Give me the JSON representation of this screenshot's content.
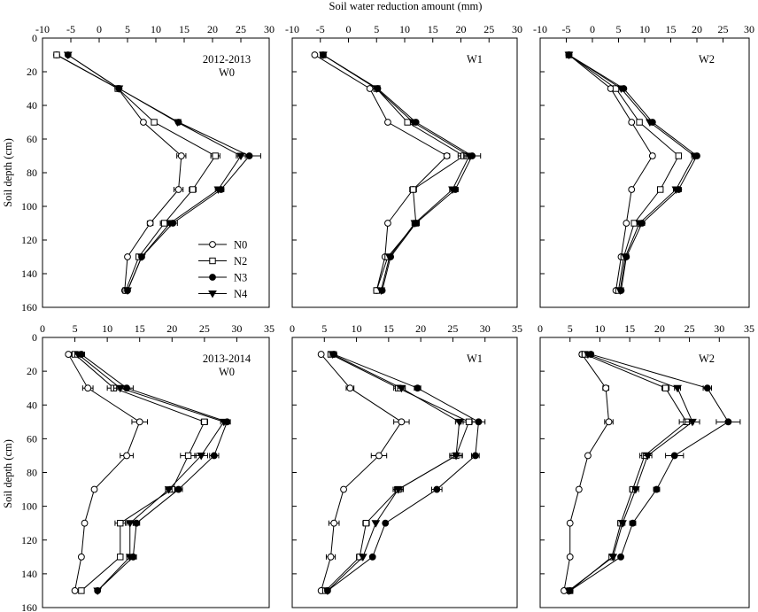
{
  "figure": {
    "top_axis_title": "Soil water reduction amount (mm)",
    "left_axis_title": "Soil depth (cm)"
  },
  "legend": [
    {
      "name": "N0",
      "marker": "open-circle"
    },
    {
      "name": "N2",
      "marker": "open-square"
    },
    {
      "name": "N3",
      "marker": "filled-circle"
    },
    {
      "name": "N4",
      "marker": "filled-triangle-down"
    }
  ],
  "chart_data": [
    {
      "type": "line",
      "row": 0,
      "col": 0,
      "label_lines": [
        "2012-2013",
        "W0"
      ],
      "xlim": [
        -10,
        30
      ],
      "xticks": [
        -10,
        -5,
        0,
        5,
        10,
        15,
        20,
        25,
        30
      ],
      "ylim": [
        0,
        160
      ],
      "yticks": [
        0,
        20,
        40,
        60,
        80,
        100,
        120,
        140,
        160
      ],
      "depths": [
        10,
        30,
        50,
        70,
        90,
        110,
        130,
        150
      ],
      "series": [
        {
          "name": "N0",
          "x": [
            -7.5,
            3.3,
            7.8,
            14.5,
            14,
            9,
            5,
            4.5
          ],
          "err": [
            0,
            0,
            0,
            0.8,
            0.8,
            0.5,
            0,
            0
          ]
        },
        {
          "name": "N2",
          "x": [
            -7.5,
            3.3,
            9.7,
            20.5,
            16.5,
            11.5,
            7,
            4.7
          ],
          "err": [
            0,
            0,
            0,
            0.8,
            0.6,
            0.7,
            0,
            0
          ]
        },
        {
          "name": "N3",
          "x": [
            -5.5,
            3.5,
            14,
            26.5,
            21.5,
            13,
            7.5,
            5
          ],
          "err": [
            0,
            0,
            0,
            2,
            0.5,
            0.8,
            0,
            0
          ]
        },
        {
          "name": "N4",
          "x": [
            -5.5,
            3.5,
            13.8,
            25,
            21,
            12.5,
            7.5,
            5
          ],
          "err": [
            0,
            0,
            0,
            0.8,
            0.5,
            0.5,
            0,
            0
          ]
        }
      ]
    },
    {
      "type": "line",
      "row": 0,
      "col": 1,
      "label_lines": [
        "W1"
      ],
      "xlim": [
        -10,
        30
      ],
      "xticks": [
        -10,
        -5,
        0,
        5,
        10,
        15,
        20,
        25,
        30
      ],
      "ylim": [
        0,
        160
      ],
      "yticks": [
        0,
        20,
        40,
        60,
        80,
        100,
        120,
        140,
        160
      ],
      "depths": [
        10,
        30,
        50,
        70,
        90,
        110,
        130,
        150
      ],
      "series": [
        {
          "name": "N0",
          "x": [
            -6,
            3.8,
            7,
            17.5,
            11.5,
            7,
            6.5,
            5
          ],
          "err": [
            0,
            0,
            0,
            0.5,
            0.5,
            0,
            0,
            0
          ]
        },
        {
          "name": "N2",
          "x": [
            -4.5,
            5,
            10.5,
            20.5,
            11.5,
            12,
            7,
            5
          ],
          "err": [
            0,
            0,
            0,
            1,
            0.6,
            0.6,
            0,
            0
          ]
        },
        {
          "name": "N3",
          "x": [
            -4.5,
            5.2,
            12,
            22,
            19,
            12,
            7.5,
            6
          ],
          "err": [
            0,
            0,
            0,
            1.5,
            0.5,
            0.5,
            0,
            0
          ]
        },
        {
          "name": "N4",
          "x": [
            -4.5,
            5,
            11.5,
            21.5,
            18.5,
            11.8,
            7.3,
            5.8
          ],
          "err": [
            0,
            0,
            0,
            0.8,
            0.5,
            0.5,
            0,
            0
          ]
        }
      ]
    },
    {
      "type": "line",
      "row": 0,
      "col": 2,
      "label_lines": [
        "W2"
      ],
      "xlim": [
        -10,
        30
      ],
      "xticks": [
        -10,
        -5,
        0,
        5,
        10,
        15,
        20,
        25,
        30
      ],
      "ylim": [
        0,
        160
      ],
      "yticks": [
        0,
        20,
        40,
        60,
        80,
        100,
        120,
        140,
        160
      ],
      "depths": [
        10,
        30,
        50,
        70,
        90,
        110,
        130,
        150
      ],
      "series": [
        {
          "name": "N0",
          "x": [
            -4.5,
            3.5,
            7.5,
            11.5,
            7.5,
            6.5,
            5.5,
            4.5
          ],
          "err": [
            0,
            0,
            0,
            0.4,
            0,
            0,
            0,
            0
          ]
        },
        {
          "name": "N2",
          "x": [
            -4.5,
            4.5,
            9,
            16.5,
            13,
            8,
            6,
            5
          ],
          "err": [
            0,
            0,
            0,
            0.5,
            0.4,
            0.5,
            0,
            0
          ]
        },
        {
          "name": "N3",
          "x": [
            -4.5,
            6,
            11.5,
            20,
            16.5,
            9.5,
            6.5,
            5.5
          ],
          "err": [
            0,
            0,
            0,
            0.4,
            0.5,
            0.5,
            0,
            0
          ]
        },
        {
          "name": "N4",
          "x": [
            -4.5,
            5.5,
            11,
            19.5,
            16,
            9,
            6.3,
            5.3
          ],
          "err": [
            0,
            0,
            0,
            0.5,
            0.5,
            0.5,
            0,
            0
          ]
        }
      ]
    },
    {
      "type": "line",
      "row": 1,
      "col": 0,
      "label_lines": [
        "2013-2014",
        "W0"
      ],
      "xlim": [
        0,
        35
      ],
      "xticks": [
        0,
        5,
        10,
        15,
        20,
        25,
        30,
        35
      ],
      "ylim": [
        0,
        160
      ],
      "yticks": [
        0,
        20,
        40,
        60,
        80,
        100,
        120,
        140,
        160
      ],
      "depths": [
        10,
        30,
        50,
        70,
        90,
        110,
        130,
        150
      ],
      "series": [
        {
          "name": "N0",
          "x": [
            4,
            7,
            15,
            13,
            8,
            6.5,
            6,
            5
          ],
          "err": [
            0,
            0.8,
            1.2,
            1,
            0,
            0,
            0,
            0
          ]
        },
        {
          "name": "N2",
          "x": [
            5,
            11,
            25,
            22.5,
            20,
            12,
            12,
            6
          ],
          "err": [
            0.5,
            1,
            0.5,
            1.2,
            0.6,
            0.8,
            0,
            0
          ]
        },
        {
          "name": "N3",
          "x": [
            6,
            13,
            28.5,
            26.5,
            21,
            14.5,
            14,
            8.5
          ],
          "err": [
            0.5,
            1,
            0.5,
            0.7,
            0.6,
            0.5,
            0.5,
            0
          ]
        },
        {
          "name": "N4",
          "x": [
            5.5,
            12,
            28,
            24.5,
            19.5,
            13.5,
            13.5,
            8.5
          ],
          "err": [
            0.5,
            1,
            0.5,
            1,
            0.5,
            0.5,
            0.5,
            0
          ]
        }
      ]
    },
    {
      "type": "line",
      "row": 1,
      "col": 1,
      "label_lines": [
        "W1"
      ],
      "xlim": [
        0,
        35
      ],
      "xticks": [
        0,
        5,
        10,
        15,
        20,
        25,
        30,
        35
      ],
      "ylim": [
        0,
        160
      ],
      "yticks": [
        0,
        20,
        40,
        60,
        80,
        100,
        120,
        140,
        160
      ],
      "depths": [
        10,
        30,
        50,
        70,
        90,
        110,
        130,
        150
      ],
      "series": [
        {
          "name": "N0",
          "x": [
            4.5,
            9,
            17,
            13.5,
            8,
            6.5,
            6,
            4.5
          ],
          "err": [
            0,
            0.6,
            1.2,
            1.2,
            0,
            0.8,
            0.7,
            0
          ]
        },
        {
          "name": "N2",
          "x": [
            6,
            16.5,
            27.5,
            25.5,
            16.5,
            11.5,
            10.5,
            5.2
          ],
          "err": [
            0.4,
            0.7,
            1.2,
            1,
            0.8,
            0.5,
            0.5,
            0
          ]
        },
        {
          "name": "N3",
          "x": [
            6.5,
            19.5,
            29,
            28.5,
            22.5,
            14.5,
            12.5,
            5.5
          ],
          "err": [
            0.4,
            0.5,
            1,
            0.6,
            0.8,
            0,
            0,
            0
          ]
        },
        {
          "name": "N4",
          "x": [
            6.3,
            17,
            26,
            25.5,
            16.5,
            13,
            11,
            5.5
          ],
          "err": [
            0.4,
            0.6,
            0.6,
            0.8,
            0.6,
            0,
            0,
            0
          ]
        }
      ]
    },
    {
      "type": "line",
      "row": 1,
      "col": 2,
      "label_lines": [
        "W2"
      ],
      "xlim": [
        0,
        35
      ],
      "xticks": [
        0,
        5,
        10,
        15,
        20,
        25,
        30,
        35
      ],
      "ylim": [
        0,
        160
      ],
      "yticks": [
        0,
        20,
        40,
        60,
        80,
        100,
        120,
        140,
        160
      ],
      "depths": [
        10,
        30,
        50,
        70,
        90,
        110,
        130,
        150
      ],
      "series": [
        {
          "name": "N0",
          "x": [
            7,
            11,
            11.5,
            8,
            6.5,
            5,
            5,
            4
          ],
          "err": [
            0.4,
            0.5,
            0.7,
            0,
            0,
            0,
            0,
            0
          ]
        },
        {
          "name": "N2",
          "x": [
            7.5,
            21,
            24.5,
            17.5,
            15.5,
            13.5,
            12,
            5
          ],
          "err": [
            0.5,
            0.6,
            1.2,
            0.8,
            0.5,
            0.5,
            0,
            0
          ]
        },
        {
          "name": "N3",
          "x": [
            8.5,
            28,
            31.5,
            22.5,
            19.5,
            15.5,
            13.5,
            5
          ],
          "err": [
            0.4,
            0.7,
            2,
            1.5,
            0.5,
            0.5,
            0,
            0
          ]
        },
        {
          "name": "N4",
          "x": [
            8,
            23,
            25.5,
            18,
            16,
            13.8,
            12.2,
            4.8
          ],
          "err": [
            0.4,
            0.5,
            1.2,
            0.7,
            0.5,
            0.4,
            0,
            0
          ]
        }
      ]
    }
  ]
}
